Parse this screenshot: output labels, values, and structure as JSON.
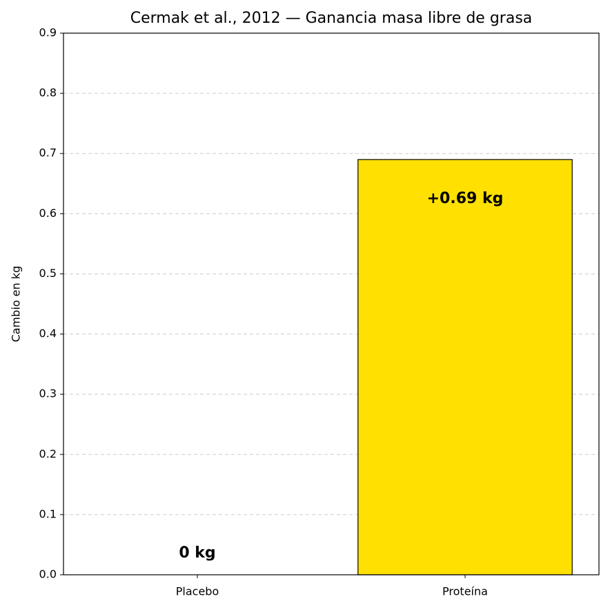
{
  "chart_data": {
    "type": "bar",
    "title": "Cermak et al., 2012 — Ganancia masa libre de grasa",
    "y_label": "Cambio en kg",
    "categories": [
      "Placebo",
      "Proteína"
    ],
    "values": [
      0,
      0.69
    ],
    "value_labels": [
      "0 kg",
      "+0.69 kg"
    ],
    "colors": [
      "#d3d3d3",
      "#ffe000"
    ],
    "ylim": [
      0,
      0.9
    ],
    "yticks": [
      {
        "value": 0,
        "label": "0.0"
      },
      0.1,
      0.2,
      0.3,
      0.4,
      0.5,
      0.6,
      0.7,
      0.8,
      0.9
    ],
    "grid": true
  }
}
